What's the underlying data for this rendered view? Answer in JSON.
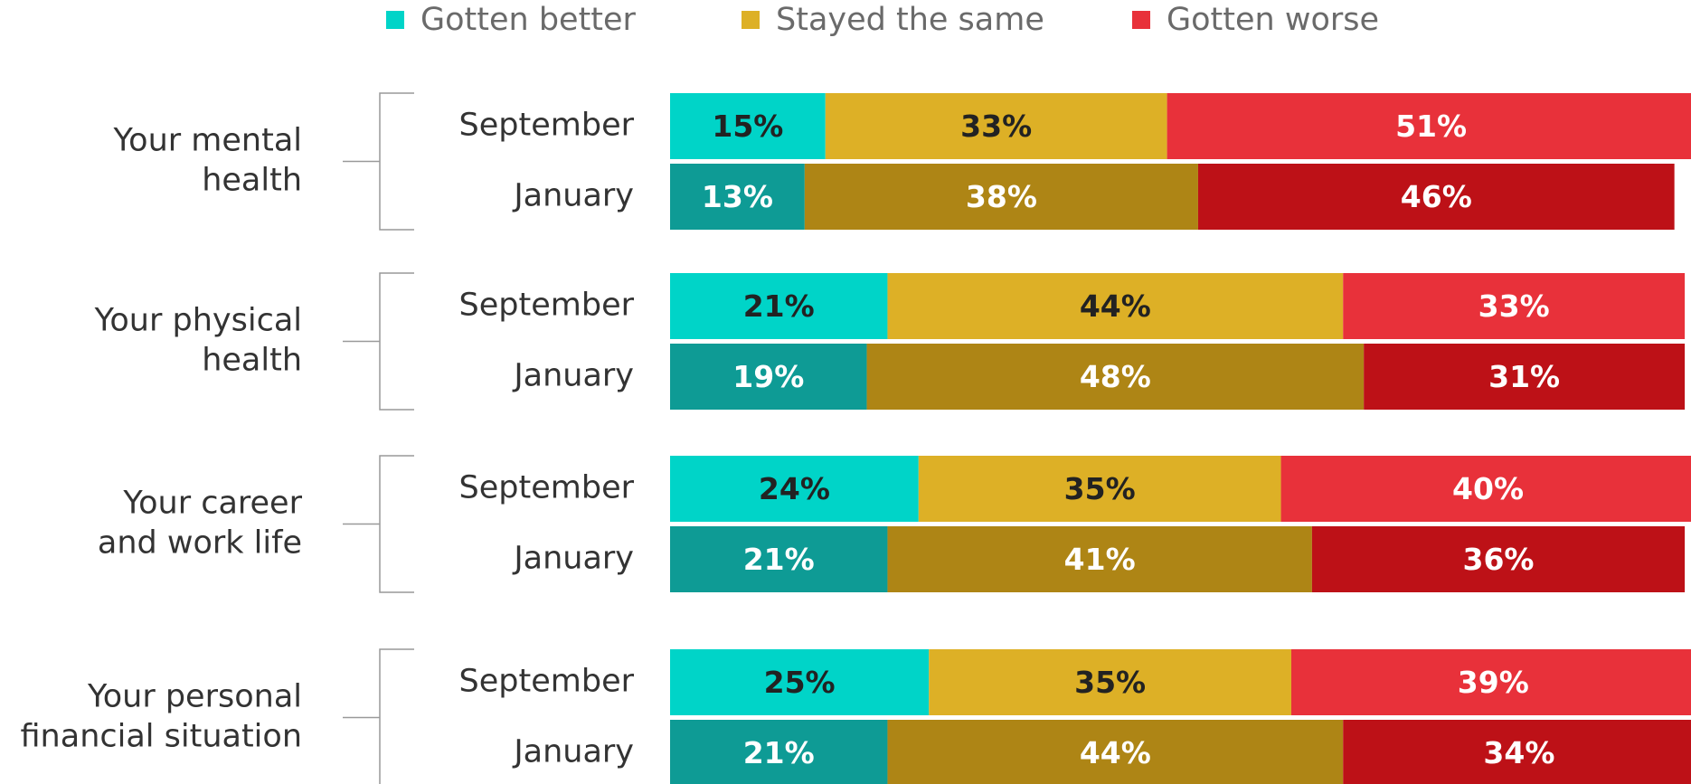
{
  "chart_data": {
    "type": "stacked_bar",
    "groups": [
      {
        "label": [
          "Your mental",
          "health"
        ]
      },
      {
        "label": [
          "Your physical",
          "health"
        ]
      },
      {
        "label": [
          "Your career",
          "and work life"
        ]
      },
      {
        "label": [
          "Your personal",
          "financial situation"
        ]
      }
    ],
    "categories": [
      "September",
      "January",
      "September",
      "January",
      "September",
      "January",
      "September",
      "January"
    ],
    "series": [
      {
        "name": "Gotten better",
        "color": "#00d4c8",
        "colors": [
          "#00d4c8",
          "#0e9b95"
        ],
        "text_colors": [
          "#222222",
          "#ffffff"
        ],
        "values": [
          15,
          13,
          21,
          19,
          24,
          21,
          25,
          21
        ],
        "value_labels": [
          "15%",
          "13%",
          "21%",
          "19%",
          "24%",
          "21%",
          "25%",
          "21%"
        ]
      },
      {
        "name": "Stayed the same",
        "color": "#ddb026",
        "colors": [
          "#ddb026",
          "#ae8515"
        ],
        "text_colors": [
          "#222222",
          "#ffffff"
        ],
        "values": [
          33,
          38,
          44,
          48,
          35,
          41,
          35,
          44
        ],
        "value_labels": [
          "33%",
          "38%",
          "44%",
          "48%",
          "35%",
          "41%",
          "35%",
          "44%"
        ]
      },
      {
        "name": "Gotten worse",
        "color": "#e8313a",
        "colors": [
          "#e8313a",
          "#bd1117"
        ],
        "text_colors": [
          "#ffffff",
          "#ffffff"
        ],
        "values": [
          51,
          46,
          33,
          31,
          40,
          36,
          39,
          34
        ],
        "value_labels": [
          "51%",
          "46%",
          "33%",
          "31%",
          "40%",
          "36%",
          "39%",
          "34%"
        ]
      }
    ],
    "xlim": [
      0,
      100
    ]
  }
}
